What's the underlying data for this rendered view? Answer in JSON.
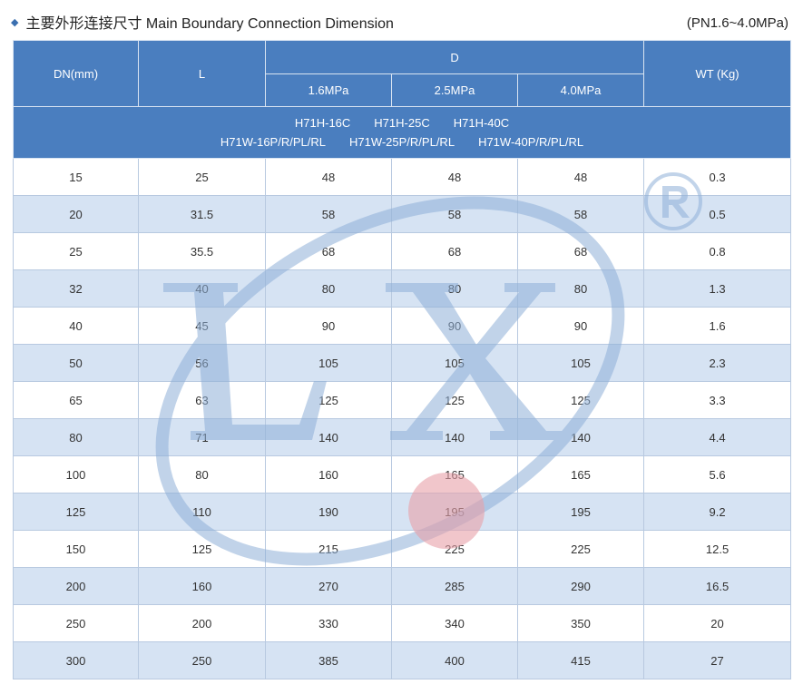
{
  "header": {
    "title": "主要外形连接尺寸 Main Boundary Connection Dimension",
    "pressure_range": "(PN1.6~4.0MPa)"
  },
  "columns": {
    "dn": "DN(mm)",
    "l": "L",
    "d": "D",
    "wt": "WT (Kg)",
    "d_sub": [
      "1.6MPa",
      "2.5MPa",
      "4.0MPa"
    ]
  },
  "models": {
    "line1": [
      "H71H-16C",
      "H71H-25C",
      "H71H-40C"
    ],
    "line2": [
      "H71W-16P/R/PL/RL",
      "H71W-25P/R/PL/RL",
      "H71W-40P/R/PL/RL"
    ]
  },
  "rows": [
    [
      "15",
      "25",
      "48",
      "48",
      "48",
      "0.3"
    ],
    [
      "20",
      "31.5",
      "58",
      "58",
      "58",
      "0.5"
    ],
    [
      "25",
      "35.5",
      "68",
      "68",
      "68",
      "0.8"
    ],
    [
      "32",
      "40",
      "80",
      "80",
      "80",
      "1.3"
    ],
    [
      "40",
      "45",
      "90",
      "90",
      "90",
      "1.6"
    ],
    [
      "50",
      "56",
      "105",
      "105",
      "105",
      "2.3"
    ],
    [
      "65",
      "63",
      "125",
      "125",
      "125",
      "3.3"
    ],
    [
      "80",
      "71",
      "140",
      "140",
      "140",
      "4.4"
    ],
    [
      "100",
      "80",
      "160",
      "165",
      "165",
      "5.6"
    ],
    [
      "125",
      "110",
      "190",
      "195",
      "195",
      "9.2"
    ],
    [
      "150",
      "125",
      "215",
      "225",
      "225",
      "12.5"
    ],
    [
      "200",
      "160",
      "270",
      "285",
      "290",
      "16.5"
    ],
    [
      "250",
      "200",
      "330",
      "340",
      "350",
      "20"
    ],
    [
      "300",
      "250",
      "385",
      "400",
      "415",
      "27"
    ]
  ],
  "colors": {
    "header_bg": "#4a7ebf",
    "row_alt": "#d6e3f3",
    "watermark": "#8fb0d8",
    "watermark_dot": "#e8a0a8"
  }
}
